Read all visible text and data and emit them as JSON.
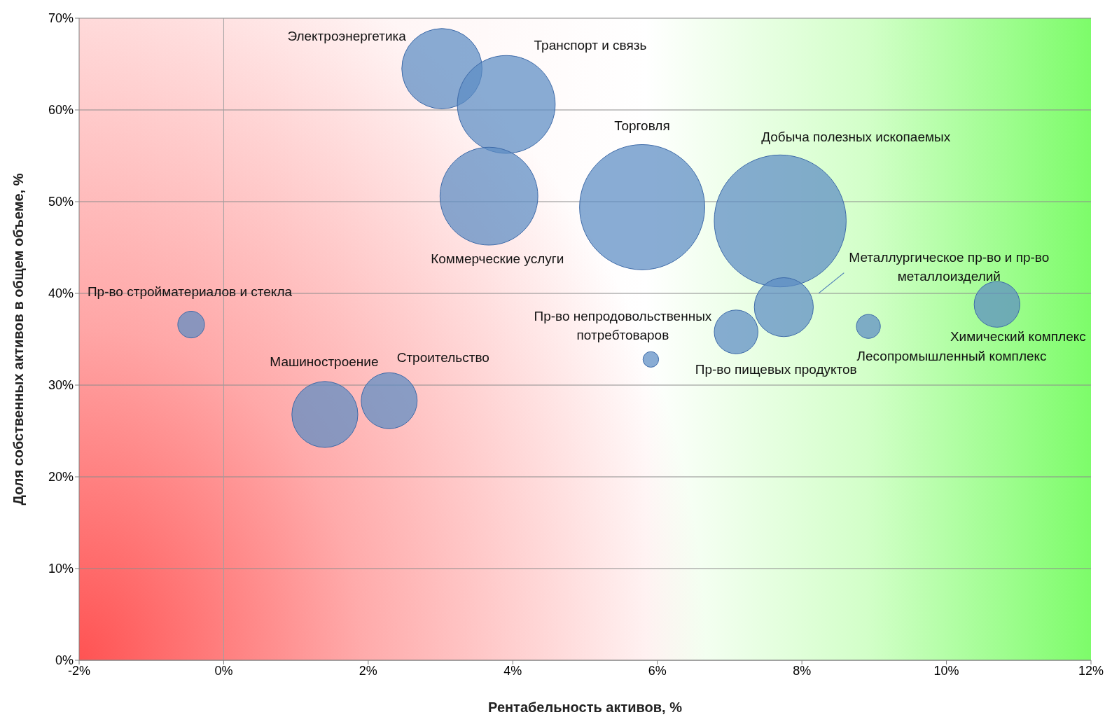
{
  "chart_data": {
    "type": "bubble",
    "xlabel": "Рентабельность активов, %",
    "ylabel": "Доля собственных активов в общем объеме, %",
    "x": [
      3.02,
      3.91,
      3.67,
      5.79,
      7.7,
      7.75,
      10.7,
      8.92,
      7.09,
      5.91,
      -0.45,
      1.4,
      2.29
    ],
    "series": [
      {
        "color": "#5b8cc4",
        "values": [
          64.5,
          60.6,
          50.6,
          49.4,
          47.9,
          38.5,
          38.8,
          36.4,
          35.8,
          32.8,
          36.6,
          26.8,
          28.3
        ],
        "sizes": [
          0.37,
          0.55,
          0.55,
          0.9,
          1,
          0.2,
          0.12,
          0.033,
          0.11,
          0.014,
          0.041,
          0.25,
          0.18
        ]
      }
    ],
    "annotations": [
      "Электроэнергетика",
      "Транспорт и связь",
      "Коммерческие услуги",
      "Торговля",
      "Добыча полезных ископаемых",
      "Металлургическое пр-во и пр-во металлоизделий",
      "Химический комплекс",
      "Лесопромышленный комплекс",
      "Пр-во пищевых продуктов",
      "Пр-во непродовольственных потребтоваров",
      "Пр-во стройматериалов и стекла",
      "Машиностроение",
      "Строительство"
    ],
    "xlim": [
      -2,
      12
    ],
    "xticks": [
      {
        "value": -2,
        "label": "-2%"
      },
      {
        "value": 0,
        "label": "0%"
      },
      {
        "value": 2,
        "label": "2%"
      },
      {
        "value": 4,
        "label": "4%"
      },
      {
        "value": 6,
        "label": "6%"
      },
      {
        "value": 8,
        "label": "8%"
      },
      {
        "value": 10,
        "label": "10%"
      },
      {
        "value": 12,
        "label": "12%"
      }
    ],
    "ylim": [
      0,
      70
    ],
    "yticks": [
      {
        "value": 0,
        "label": "0%"
      },
      {
        "value": 10,
        "label": "10%"
      },
      {
        "value": 20,
        "label": "20%"
      },
      {
        "value": 30,
        "label": "30%"
      },
      {
        "value": 40,
        "label": "40%"
      },
      {
        "value": 50,
        "label": "50%"
      },
      {
        "value": 60,
        "label": "60%"
      },
      {
        "value": 70,
        "label": "70%"
      }
    ],
    "grid": "y",
    "ref_lines": [
      {
        "axis": "x",
        "value": 0,
        "color": "#a0a0a0"
      }
    ],
    "legend": false
  }
}
